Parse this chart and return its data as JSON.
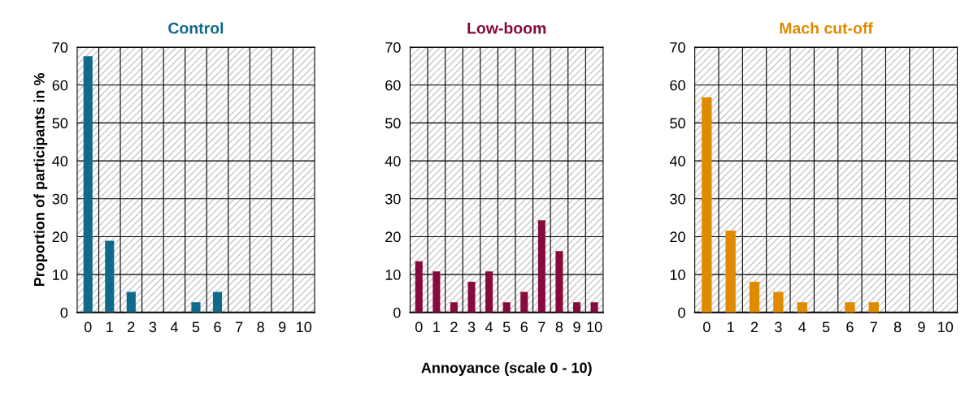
{
  "chart_data": [
    {
      "type": "bar",
      "title": "Control",
      "ylabel": "Proportion of participants in %",
      "categories": [
        "0",
        "1",
        "2",
        "3",
        "4",
        "5",
        "6",
        "7",
        "8",
        "9",
        "10"
      ],
      "series": [
        {
          "color": "#0f6a8b",
          "values": [
            67.6,
            18.9,
            5.4,
            0,
            0,
            2.7,
            5.4,
            0,
            0,
            0,
            0
          ]
        }
      ],
      "ylim": [
        0,
        70
      ],
      "yticks": [
        0,
        10,
        20,
        30,
        40,
        50,
        60,
        70
      ],
      "grid": true,
      "legend": false
    },
    {
      "type": "bar",
      "title": "Low-boom",
      "xlabel": "Annoyance (scale 0 - 10)",
      "categories": [
        "0",
        "1",
        "2",
        "3",
        "4",
        "5",
        "6",
        "7",
        "8",
        "9",
        "10"
      ],
      "series": [
        {
          "color": "#870a3c",
          "values": [
            13.5,
            10.8,
            2.7,
            8.1,
            10.8,
            2.7,
            5.4,
            24.3,
            16.2,
            2.7,
            2.7
          ]
        }
      ],
      "ylim": [
        0,
        70
      ],
      "yticks": [
        0,
        10,
        20,
        30,
        40,
        50,
        60,
        70
      ],
      "grid": true,
      "legend": false
    },
    {
      "type": "bar",
      "title": "Mach cut-off",
      "categories": [
        "0",
        "1",
        "2",
        "3",
        "4",
        "5",
        "6",
        "7",
        "8",
        "9",
        "10"
      ],
      "series": [
        {
          "color": "#e08a00",
          "values": [
            56.8,
            21.6,
            8.1,
            5.4,
            2.7,
            0,
            2.7,
            2.7,
            0,
            0,
            0
          ]
        }
      ],
      "ylim": [
        0,
        70
      ],
      "yticks": [
        0,
        10,
        20,
        30,
        40,
        50,
        60,
        70
      ],
      "grid": true,
      "legend": false
    }
  ]
}
